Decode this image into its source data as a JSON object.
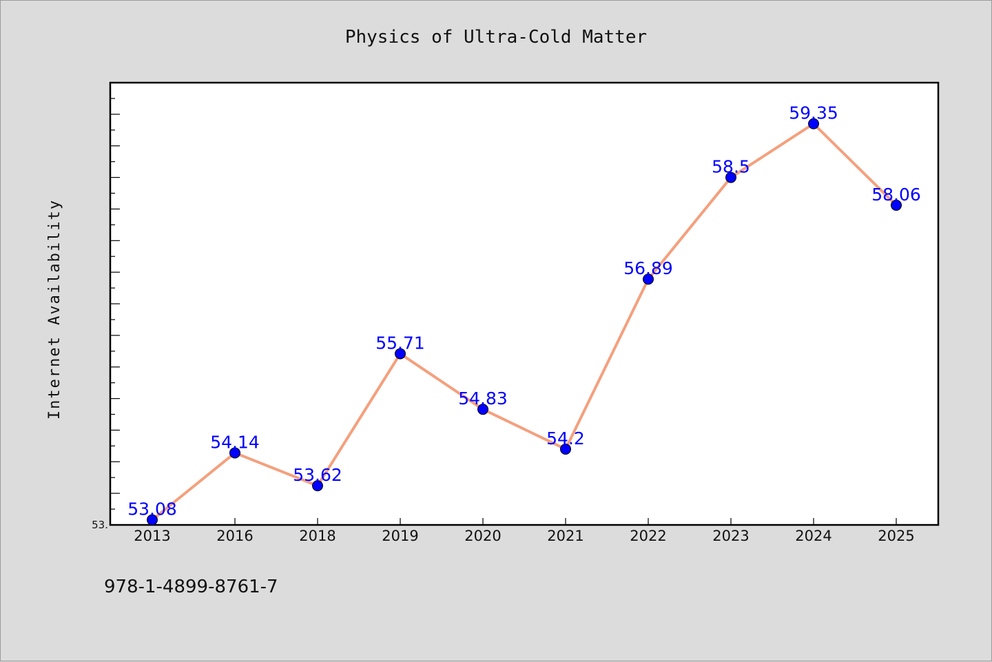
{
  "footer": {
    "isbn": "978-1-4899-8761-7"
  },
  "colors": {
    "line": "#f4a07e",
    "marker": "#0000ff",
    "label": "#0000ff",
    "background": "#dcdcdc",
    "plot_bg": "#ffffff"
  },
  "chart_data": {
    "type": "line",
    "title": "Physics of Ultra-Cold Matter",
    "xlabel": "",
    "ylabel": "Internet Availability",
    "categories": [
      "2013",
      "2016",
      "2018",
      "2019",
      "2020",
      "2021",
      "2022",
      "2023",
      "2024",
      "2025"
    ],
    "series": [
      {
        "values": [
          53.08,
          54.14,
          53.62,
          55.71,
          54.83,
          54.2,
          56.89,
          58.5,
          59.35,
          58.06
        ]
      }
    ],
    "data_labels": [
      "53.08",
      "54.14",
      "53.62",
      "55.71",
      "54.83",
      "54.2",
      "56.89",
      "58.5",
      "59.35",
      "58.06"
    ],
    "ylim": [
      53.0,
      60.0
    ],
    "ytick_label": "53.",
    "grid": false,
    "legend": "none"
  }
}
